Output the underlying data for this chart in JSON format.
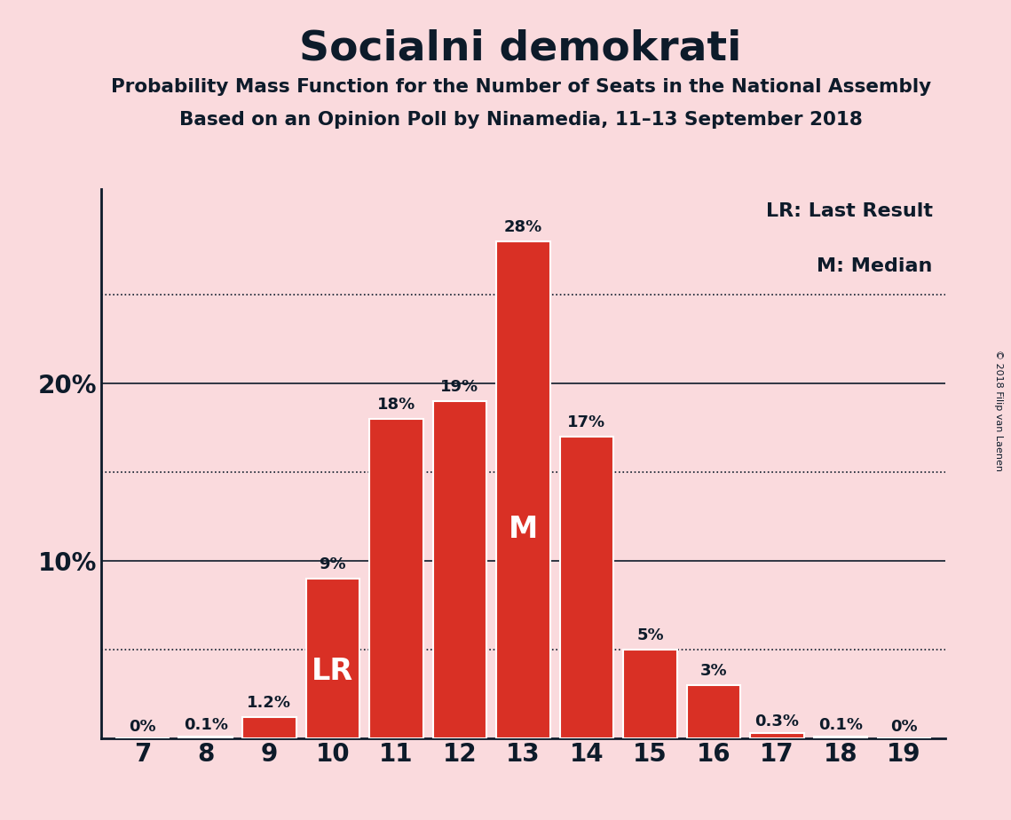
{
  "title": "Socialni demokrati",
  "subtitle1": "Probability Mass Function for the Number of Seats in the National Assembly",
  "subtitle2": "Based on an Opinion Poll by Ninamedia, 11–13 September 2018",
  "copyright": "© 2018 Filip van Laenen",
  "seats": [
    7,
    8,
    9,
    10,
    11,
    12,
    13,
    14,
    15,
    16,
    17,
    18,
    19
  ],
  "probabilities": [
    0.0,
    0.1,
    1.2,
    9.0,
    18.0,
    19.0,
    28.0,
    17.0,
    5.0,
    3.0,
    0.3,
    0.1,
    0.0
  ],
  "labels": [
    "0%",
    "0.1%",
    "1.2%",
    "9%",
    "18%",
    "19%",
    "28%",
    "17%",
    "5%",
    "3%",
    "0.3%",
    "0.1%",
    "0%"
  ],
  "bar_color": "#D93025",
  "bar_edge_color": "#FFFFFF",
  "background_color": "#FADADD",
  "text_color": "#0D1B2A",
  "lr_seat": 10,
  "median_seat": 13,
  "yticks": [
    10,
    20
  ],
  "ydotted": [
    5,
    15,
    25
  ],
  "ylim": [
    0,
    31
  ],
  "legend_lr": "LR: Last Result",
  "legend_m": "M: Median",
  "bar_width": 0.85
}
